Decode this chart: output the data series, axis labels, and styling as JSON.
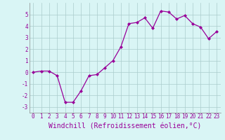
{
  "x": [
    0,
    1,
    2,
    3,
    4,
    5,
    6,
    7,
    8,
    9,
    10,
    11,
    12,
    13,
    14,
    15,
    16,
    17,
    18,
    19,
    20,
    21,
    22,
    23
  ],
  "y": [
    0,
    0.1,
    0.1,
    -0.3,
    -2.6,
    -2.6,
    -1.6,
    -0.3,
    -0.2,
    0.4,
    1.0,
    2.2,
    4.2,
    4.3,
    4.7,
    3.8,
    5.3,
    5.2,
    4.6,
    4.9,
    4.2,
    3.9,
    2.9,
    3.5
  ],
  "line_color": "#990099",
  "marker": "D",
  "marker_size": 2.0,
  "bg_color": "#d9f5f5",
  "grid_color": "#aacccc",
  "xlabel": "Windchill (Refroidissement éolien,°C)",
  "xlabel_color": "#990099",
  "ylabel_ticks": [
    -3,
    -2,
    -1,
    0,
    1,
    2,
    3,
    4,
    5
  ],
  "xtick_labels": [
    "0",
    "1",
    "2",
    "3",
    "4",
    "5",
    "6",
    "7",
    "8",
    "9",
    "10",
    "11",
    "12",
    "13",
    "14",
    "15",
    "16",
    "17",
    "18",
    "19",
    "20",
    "21",
    "22",
    "23"
  ],
  "ylim": [
    -3.5,
    6.0
  ],
  "xlim": [
    -0.5,
    23.5
  ],
  "tick_color": "#990099",
  "tick_fontsize": 5.5,
  "xlabel_fontsize": 7.0,
  "spine_color": "#888888",
  "line_width": 0.9
}
